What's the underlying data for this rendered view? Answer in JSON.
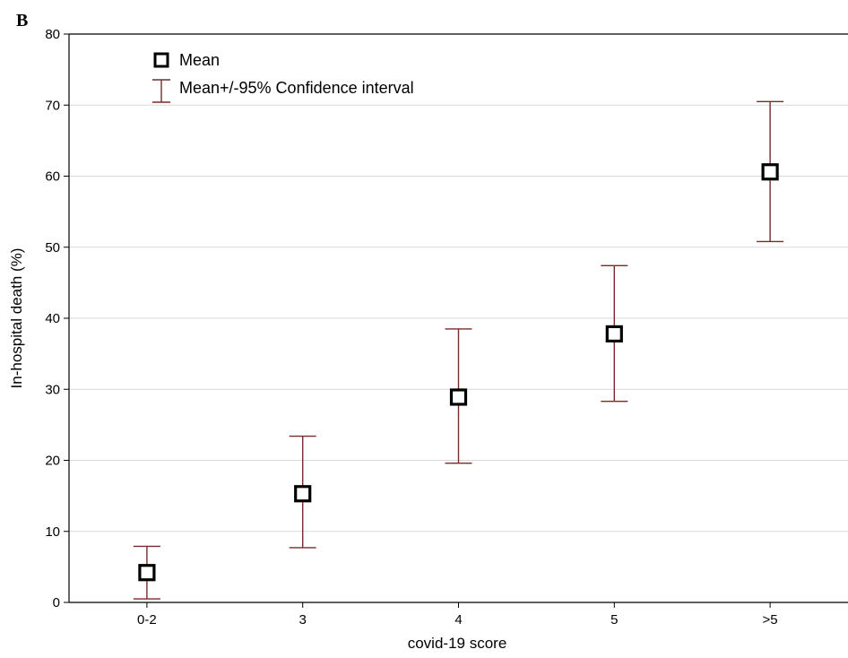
{
  "panel_label": "B",
  "chart_data": {
    "type": "scatter",
    "categories": [
      "0-2",
      "3",
      "4",
      "5",
      ">5"
    ],
    "series": [
      {
        "name": "Mean",
        "values": [
          4.2,
          15.3,
          28.9,
          37.8,
          60.6
        ],
        "ci_lower": [
          0.5,
          7.7,
          19.6,
          28.3,
          50.8
        ],
        "ci_upper": [
          7.9,
          23.4,
          38.5,
          47.4,
          70.5
        ]
      }
    ],
    "legend": [
      "Mean",
      "Mean+/-95% Confidence interval"
    ],
    "legend_position": "top-left",
    "xlabel": "covid-19 score",
    "ylabel": "In-hospital death (%)",
    "ylim": [
      0,
      80
    ],
    "yticks": [
      0,
      10,
      20,
      30,
      40,
      50,
      60,
      70,
      80
    ],
    "grid": "horizontal",
    "colors": {
      "mean_marker": "#000000",
      "error_bar": "#7b2a2a",
      "grid": "#d9d9d9",
      "axis": "#000000"
    }
  }
}
